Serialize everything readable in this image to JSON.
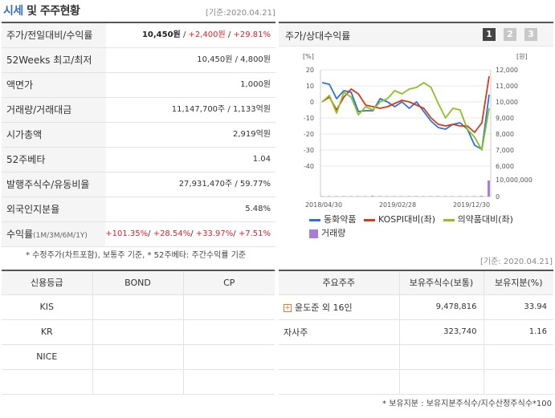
{
  "header": {
    "title_accent": "시세",
    "title_rest": " 및 주주현황",
    "base_date": "[기준:2020.04.21]"
  },
  "stats": {
    "rows": [
      {
        "label": "주가/전일대비/수익률",
        "price": "10,450원",
        "change": "+2,400원",
        "rate": "+29.81%"
      },
      {
        "label": "52Weeks 최고/최저",
        "value": "10,450원 / 4,800원"
      },
      {
        "label": "액면가",
        "value": "1,000원"
      },
      {
        "label": "거래량/거래대금",
        "value": "11,147,700주 / 1,133억원"
      },
      {
        "label": "시가총액",
        "value": "2,919억원"
      },
      {
        "label": "52주베타",
        "value": "1.04"
      },
      {
        "label": "발행주식수/유동비율",
        "value": "27,931,470주 / 59.77%"
      },
      {
        "label": "외국인지분율",
        "value": "5.48%"
      },
      {
        "label": "수익률",
        "label_sub": "(1M/3M/6M/1Y)",
        "r1": "+101.35%",
        "r2": "+28.54%",
        "r3": "+33.97%",
        "r4": "+7.51%"
      }
    ],
    "note": "* 수정주가(차트포함), 보통주 기준, * 52주베타: 주간수익률 기준"
  },
  "chart_panel": {
    "label": "주가/상대수익률",
    "pages": [
      "1",
      "2",
      "3"
    ],
    "active_page": 1,
    "legend": [
      {
        "label": "동화약품",
        "color": "#2a73d9"
      },
      {
        "label": "KOSPI대비(좌)",
        "color": "#d43a1a"
      },
      {
        "label": "의약품대비(좌)",
        "color": "#8cc21f"
      }
    ],
    "legend_volume": "거래량"
  },
  "chart_data": {
    "type": "line",
    "left_unit": "[%]",
    "right_unit": "[원]",
    "left_ticks": [
      "20",
      "10",
      "0",
      "-10",
      "-20",
      "-30",
      "-40"
    ],
    "right_ticks": [
      "12,000",
      "11,000",
      "10,000",
      "9,000",
      "8,000",
      "7,000",
      "6,000"
    ],
    "volume_ticks": [
      "10,000,000",
      "0"
    ],
    "x_ticks": [
      "2018/04/30",
      "2019/02/28",
      "2019/12/30"
    ],
    "ylim_left": [
      -40,
      20
    ],
    "ylim_right": [
      6000,
      12000
    ],
    "series": [
      {
        "name": "동화약품",
        "axis": "right",
        "color": "#2a73d9",
        "values": [
          11200,
          11100,
          10200,
          10700,
          10600,
          9400,
          9450,
          9450,
          10200,
          10000,
          9700,
          10000,
          9600,
          10000,
          9400,
          8800,
          8400,
          8300,
          8600,
          8700,
          8300,
          7300,
          7050,
          10450
        ]
      },
      {
        "name": "KOSPI대비(좌)",
        "axis": "left",
        "color": "#d43a1a",
        "values": [
          0,
          3,
          -5,
          3,
          8,
          5,
          -2,
          -3,
          -4,
          -3,
          -1,
          1,
          0,
          -2,
          -4,
          -10,
          -14,
          -15,
          -14,
          -15,
          -15,
          -19,
          -13,
          16
        ]
      },
      {
        "name": "의약품대비(좌)",
        "axis": "left",
        "color": "#8cc21f",
        "values": [
          0,
          4,
          -7,
          6,
          3,
          -8,
          -3,
          -5,
          0,
          2,
          7,
          5,
          8,
          9,
          12,
          9,
          -1,
          -10,
          -4,
          -5,
          -17,
          -22,
          -30,
          -4
        ]
      }
    ],
    "volume": {
      "name": "거래량",
      "color": "#a97fd6",
      "values": [
        0.02,
        0.01,
        0.02,
        0.01,
        0.02,
        0.01,
        0.01,
        0.05,
        0.01,
        0.01,
        0.02,
        0.01,
        0.01,
        0.01,
        0.02,
        0.02,
        0.01,
        0.01,
        0.01,
        0.01,
        0.01,
        0.03,
        0.05,
        1.11
      ]
    }
  },
  "credit": {
    "headers": [
      "신용등급",
      "BOND",
      "CP"
    ],
    "rows": [
      {
        "agency": "KIS",
        "bond": "",
        "cp": ""
      },
      {
        "agency": "KR",
        "bond": "",
        "cp": ""
      },
      {
        "agency": "NICE",
        "bond": "",
        "cp": ""
      },
      {
        "agency": "",
        "bond": "",
        "cp": ""
      }
    ]
  },
  "holders": {
    "base_date": "[기준: 2020.04.21]",
    "headers": [
      "주요주주",
      "보유주식수(보통)",
      "보유지분(%)"
    ],
    "rows": [
      {
        "name": "윤도준 외 16인",
        "shares": "9,478,816",
        "pct": "33.94"
      },
      {
        "name": "자사주",
        "shares": "323,740",
        "pct": "1.16"
      },
      {
        "name": "",
        "shares": "",
        "pct": ""
      },
      {
        "name": "",
        "shares": "",
        "pct": ""
      }
    ],
    "note": "* 보유지분 : 보유지분주식수/지수산정주식수*100"
  }
}
